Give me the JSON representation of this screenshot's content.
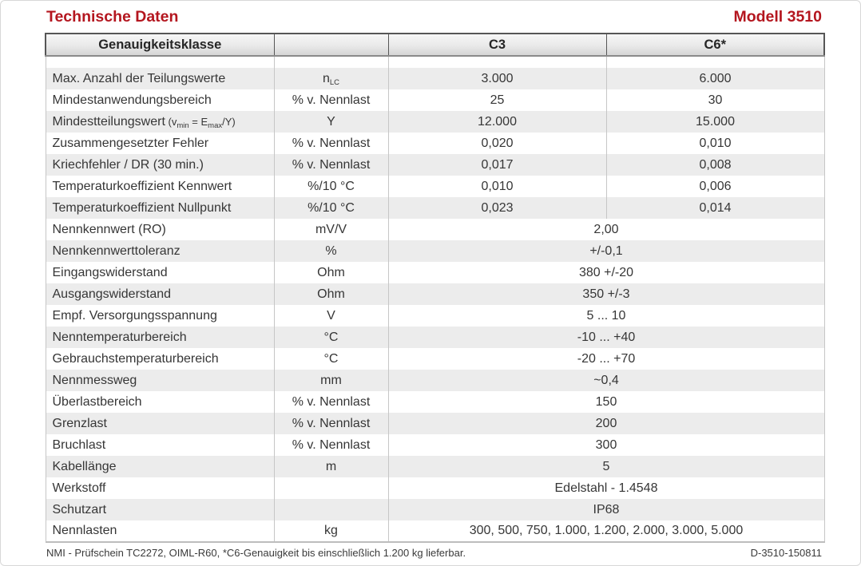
{
  "page": {
    "title": "Technische Daten",
    "model": "Modell 3510",
    "footer_left": "NMI - Prüfschein TC2272, OIML-R60, *C6-Genauigkeit bis einschließlich 1.200 kg lieferbar.",
    "footer_right": "D-3510-150811"
  },
  "colors": {
    "accent_red": "#b4161f",
    "row_shade": "#ececec",
    "border_light": "#c6c6c6",
    "border_dark": "#565656",
    "text": "#363636"
  },
  "table": {
    "header": {
      "col1": "Genauigkeitsklasse",
      "col2": "",
      "col3": "C3",
      "col4": "C6*"
    },
    "rows": [
      {
        "label": "Max. Anzahl der Teilungswerte",
        "unit": "n_{LC}",
        "c3": "3.000",
        "c6": "6.000"
      },
      {
        "label": "Mindestanwendungsbereich",
        "unit": "% v. Nennlast",
        "c3": "25",
        "c6": "30"
      },
      {
        "label": "Mindestteilungswert",
        "label_small": "(v_{min} = E_{max}/Y)",
        "unit": "Y",
        "c3": "12.000",
        "c6": "15.000"
      },
      {
        "label": "Zusammengesetzter Fehler",
        "unit": "% v. Nennlast",
        "c3": "0,020",
        "c6": "0,010"
      },
      {
        "label": "Kriechfehler / DR (30 min.)",
        "unit": "% v. Nennlast",
        "c3": "0,017",
        "c6": "0,008"
      },
      {
        "label": "Temperaturkoeffizient Kennwert",
        "unit": "%/10 °C",
        "c3": "0,010",
        "c6": "0,006"
      },
      {
        "label": "Temperaturkoeffizient Nullpunkt",
        "unit": "%/10 °C",
        "c3": "0,023",
        "c6": "0,014"
      },
      {
        "label": "Nennkennwert (RO)",
        "unit": "mV/V",
        "value": "2,00"
      },
      {
        "label": "Nennkennwerttoleranz",
        "unit": "%",
        "value": "+/-0,1"
      },
      {
        "label": "Eingangswiderstand",
        "unit": "Ohm",
        "value": "380 +/-20"
      },
      {
        "label": "Ausgangswiderstand",
        "unit": "Ohm",
        "value": "350 +/-3"
      },
      {
        "label": "Empf. Versorgungsspannung",
        "unit": "V",
        "value": "5 ... 10"
      },
      {
        "label": "Nenntemperaturbereich",
        "unit": "°C",
        "value": "-10 ... +40"
      },
      {
        "label": "Gebrauchstemperaturbereich",
        "unit": "°C",
        "value": "-20 ... +70"
      },
      {
        "label": "Nennmessweg",
        "unit": "mm",
        "value": "~0,4"
      },
      {
        "label": "Überlastbereich",
        "unit": "% v. Nennlast",
        "value": "150"
      },
      {
        "label": "Grenzlast",
        "unit": "% v. Nennlast",
        "value": "200"
      },
      {
        "label": "Bruchlast",
        "unit": "% v. Nennlast",
        "value": "300"
      },
      {
        "label": "Kabellänge",
        "unit": "m",
        "value": "5"
      },
      {
        "label": "Werkstoff",
        "unit": "",
        "value": "Edelstahl - 1.4548"
      },
      {
        "label": "Schutzart",
        "unit": "",
        "value": "IP68"
      },
      {
        "label": "Nennlasten",
        "unit": "kg",
        "value": "300, 500, 750, 1.000, 1.200, 2.000, 3.000, 5.000"
      }
    ]
  }
}
